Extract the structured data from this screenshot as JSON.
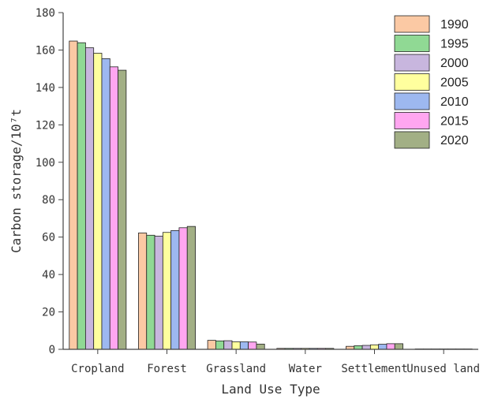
{
  "chart_data": {
    "type": "bar",
    "title": "",
    "xlabel": "Land Use Type",
    "ylabel": "Carbon storage/10⁷t",
    "ylim": [
      0,
      180
    ],
    "yticks": [
      0,
      20,
      40,
      60,
      80,
      100,
      120,
      140,
      160,
      180
    ],
    "categories": [
      "Cropland",
      "Forest",
      "Grassland",
      "Water",
      "Settlement",
      "Unused land"
    ],
    "tick_labels": [
      "Cropland",
      "Forest",
      "Grassland",
      "Water",
      "Settlement",
      "Unused land"
    ],
    "legend_position": "top-right",
    "grid": false,
    "series": [
      {
        "name": "1990",
        "color": "#FBC9A4",
        "values": [
          164.8,
          62.2,
          4.8,
          0.5,
          1.6,
          0.2
        ]
      },
      {
        "name": "1995",
        "color": "#90D994",
        "values": [
          163.9,
          61.0,
          4.5,
          0.5,
          1.9,
          0.2
        ]
      },
      {
        "name": "2000",
        "color": "#C8B6DE",
        "values": [
          161.2,
          60.5,
          4.6,
          0.5,
          2.1,
          0.2
        ]
      },
      {
        "name": "2005",
        "color": "#FFFF9E",
        "values": [
          158.3,
          62.5,
          4.0,
          0.5,
          2.4,
          0.2
        ]
      },
      {
        "name": "2010",
        "color": "#9DB8F0",
        "values": [
          155.4,
          63.5,
          4.0,
          0.5,
          2.7,
          0.2
        ]
      },
      {
        "name": "2015",
        "color": "#FFA6F0",
        "values": [
          151.0,
          65.0,
          3.9,
          0.5,
          3.0,
          0.2
        ]
      },
      {
        "name": "2020",
        "color": "#A2AF85",
        "values": [
          149.2,
          65.7,
          2.8,
          0.5,
          3.0,
          0.2
        ]
      }
    ]
  }
}
